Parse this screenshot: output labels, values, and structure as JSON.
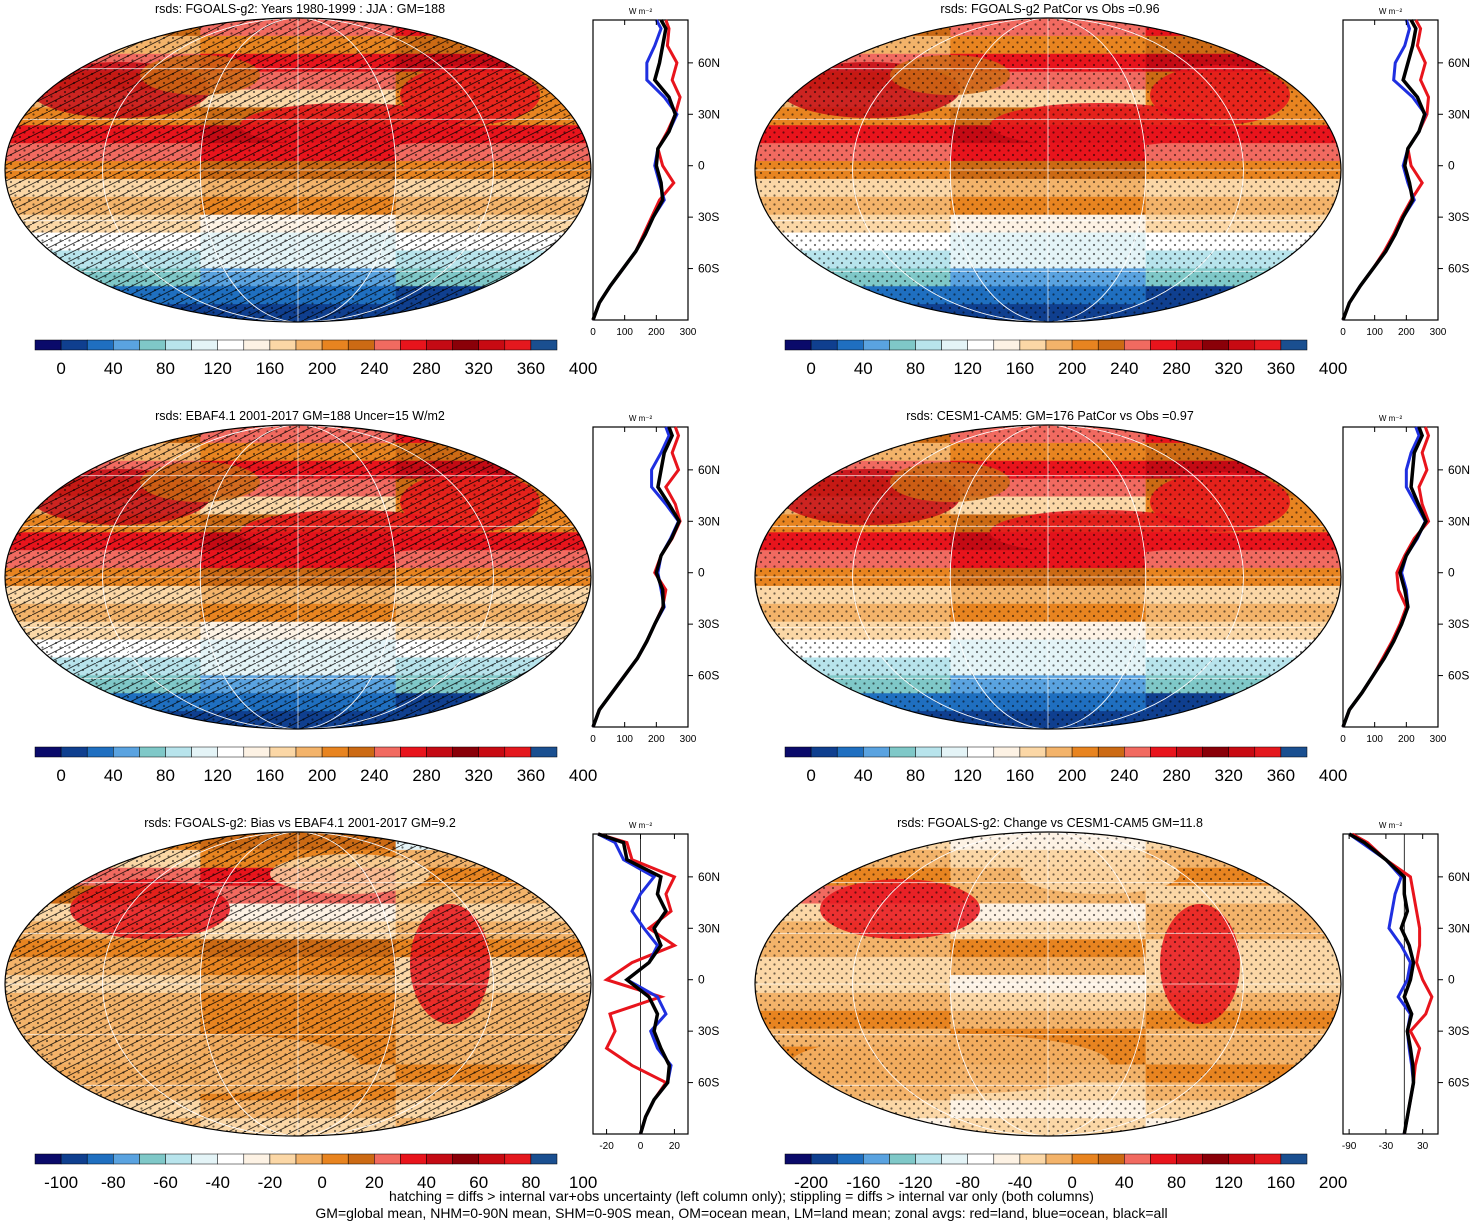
{
  "palette": [
    "#0a0a6a",
    "#0f3f8f",
    "#1f6fc0",
    "#5aa3e0",
    "#7fc8c8",
    "#b8e4ec",
    "#e4f4f7",
    "#ffffff",
    "#fdf2e4",
    "#fbd7a6",
    "#f3b36a",
    "#e88420",
    "#cc6a14",
    "#f16a60",
    "#e8141c",
    "#c40a14",
    "#8a0008",
    "#c80a12",
    "#e4181e",
    "#1a4f90"
  ],
  "zonal_colors": {
    "land": "#e8141c",
    "ocean": "#1f2fe0",
    "all": "#000000"
  },
  "field_style": [
    {
      "type": "absolute"
    },
    {
      "type": "absolute"
    },
    {
      "type": "absolute"
    },
    {
      "type": "absolute"
    },
    {
      "type": "diff"
    },
    {
      "type": "diff"
    }
  ],
  "chart_data": [
    {
      "type": "heatmap",
      "title": "rsds: FGOALS-g2: Years 1980-1999 : JJA : GM=188",
      "colorbar_ticks": [
        "0",
        "40",
        "80",
        "120",
        "160",
        "200",
        "240",
        "280",
        "320",
        "360",
        "400"
      ],
      "zonal": {
        "unit_label": "W m⁻²",
        "xlim": [
          0,
          300
        ],
        "xticks": [
          "0",
          "100",
          "200",
          "300"
        ],
        "lat_labels": [
          "60N",
          "30N",
          "0",
          "30S",
          "60S"
        ],
        "lat": [
          -90,
          -80,
          -70,
          -60,
          -50,
          -40,
          -30,
          -20,
          -10,
          0,
          10,
          20,
          30,
          40,
          50,
          60,
          70,
          80,
          85
        ],
        "land": [
          0,
          20,
          55,
          95,
          135,
          160,
          185,
          210,
          255,
          220,
          205,
          235,
          260,
          275,
          250,
          265,
          235,
          240,
          230
        ],
        "ocean": [
          0,
          20,
          55,
          95,
          135,
          165,
          190,
          225,
          210,
          195,
          205,
          240,
          265,
          225,
          170,
          170,
          195,
          215,
          200
        ],
        "all": [
          0,
          20,
          55,
          95,
          135,
          165,
          190,
          220,
          215,
          200,
          205,
          240,
          260,
          240,
          195,
          210,
          220,
          230,
          215
        ]
      }
    },
    {
      "type": "heatmap",
      "title": "rsds: FGOALS-g2 PatCor vs Obs =0.96",
      "colorbar_ticks": [
        "0",
        "40",
        "80",
        "120",
        "160",
        "200",
        "240",
        "280",
        "320",
        "360",
        "400"
      ],
      "zonal": {
        "unit_label": "W m⁻²",
        "xlim": [
          0,
          300
        ],
        "xticks": [
          "0",
          "100",
          "200",
          "300"
        ],
        "lat_labels": [
          "60N",
          "30N",
          "0",
          "30S",
          "60S"
        ],
        "lat": [
          -90,
          -80,
          -70,
          -60,
          -50,
          -40,
          -30,
          -20,
          -10,
          0,
          10,
          20,
          30,
          40,
          50,
          60,
          70,
          80,
          85
        ],
        "land": [
          0,
          20,
          55,
          95,
          130,
          160,
          185,
          215,
          250,
          215,
          205,
          240,
          265,
          270,
          245,
          260,
          235,
          245,
          230
        ],
        "ocean": [
          0,
          20,
          55,
          95,
          135,
          165,
          190,
          225,
          205,
          190,
          205,
          240,
          260,
          220,
          160,
          165,
          195,
          210,
          200
        ],
        "all": [
          0,
          20,
          55,
          95,
          135,
          165,
          190,
          220,
          210,
          195,
          205,
          240,
          258,
          235,
          190,
          205,
          220,
          230,
          215
        ]
      }
    },
    {
      "type": "heatmap",
      "title": "rsds: EBAF4.1 2001-2017 GM=188 Uncer=15 W/m2",
      "colorbar_ticks": [
        "0",
        "40",
        "80",
        "120",
        "160",
        "200",
        "240",
        "280",
        "320",
        "360",
        "400"
      ],
      "zonal": {
        "unit_label": "W m⁻²",
        "xlim": [
          0,
          300
        ],
        "xticks": [
          "0",
          "100",
          "200",
          "300"
        ],
        "lat_labels": [
          "60N",
          "30N",
          "0",
          "30S",
          "60S"
        ],
        "lat": [
          -90,
          -80,
          -70,
          -60,
          -50,
          -40,
          -30,
          -20,
          -10,
          0,
          10,
          20,
          30,
          40,
          50,
          60,
          70,
          80,
          85
        ],
        "land": [
          0,
          20,
          60,
          100,
          140,
          170,
          195,
          220,
          230,
          195,
          215,
          250,
          275,
          260,
          230,
          270,
          250,
          270,
          260
        ],
        "ocean": [
          0,
          20,
          60,
          100,
          140,
          170,
          195,
          225,
          215,
          205,
          215,
          245,
          270,
          230,
          185,
          185,
          215,
          240,
          230
        ],
        "all": [
          0,
          20,
          60,
          100,
          140,
          170,
          195,
          222,
          220,
          200,
          215,
          248,
          272,
          240,
          205,
          215,
          225,
          250,
          240
        ]
      }
    },
    {
      "type": "heatmap",
      "title": "rsds: CESM1-CAM5: GM=176 PatCor vs Obs =0.97",
      "colorbar_ticks": [
        "0",
        "40",
        "80",
        "120",
        "160",
        "200",
        "240",
        "280",
        "320",
        "360",
        "400"
      ],
      "zonal": {
        "unit_label": "W m⁻²",
        "xlim": [
          0,
          300
        ],
        "xticks": [
          "0",
          "100",
          "200",
          "300"
        ],
        "lat_labels": [
          "60N",
          "30N",
          "0",
          "30S",
          "60S"
        ],
        "lat": [
          -90,
          -80,
          -70,
          -60,
          -50,
          -40,
          -30,
          -20,
          -10,
          0,
          10,
          20,
          30,
          40,
          50,
          60,
          70,
          80,
          85
        ],
        "land": [
          0,
          20,
          60,
          95,
          125,
          155,
          180,
          200,
          175,
          170,
          195,
          225,
          270,
          250,
          240,
          265,
          250,
          270,
          260
        ],
        "ocean": [
          0,
          20,
          60,
          95,
          130,
          160,
          185,
          205,
          200,
          185,
          200,
          235,
          260,
          230,
          200,
          200,
          215,
          240,
          230
        ],
        "all": [
          0,
          20,
          60,
          95,
          130,
          160,
          185,
          205,
          195,
          180,
          200,
          232,
          262,
          238,
          215,
          220,
          225,
          250,
          240
        ]
      }
    },
    {
      "type": "heatmap",
      "title": "rsds: FGOALS-g2: Bias vs EBAF4.1 2001-2017 GM=9.2",
      "colorbar_ticks": [
        "-100",
        "-80",
        "-60",
        "-40",
        "-20",
        "0",
        "20",
        "40",
        "60",
        "80",
        "100"
      ],
      "zonal": {
        "unit_label": "W m⁻²",
        "xlim": [
          -28,
          28
        ],
        "xticks": [
          "-20",
          "0",
          "20"
        ],
        "lat_labels": [
          "60N",
          "30N",
          "0",
          "30S",
          "60S"
        ],
        "lat": [
          -90,
          -80,
          -70,
          -60,
          -50,
          -40,
          -30,
          -20,
          -10,
          0,
          10,
          20,
          30,
          40,
          50,
          60,
          70,
          80,
          85
        ],
        "land": [
          0,
          3,
          8,
          15,
          -5,
          -20,
          -15,
          -18,
          12,
          -20,
          -5,
          20,
          5,
          18,
          15,
          20,
          -5,
          -8,
          -25
        ],
        "ocean": [
          0,
          3,
          8,
          16,
          18,
          10,
          6,
          15,
          10,
          -8,
          5,
          10,
          2,
          -5,
          0,
          8,
          -10,
          -15,
          -25
        ],
        "all": [
          0,
          3,
          8,
          16,
          17,
          12,
          8,
          10,
          5,
          -8,
          5,
          12,
          8,
          15,
          10,
          12,
          -8,
          -10,
          -25
        ]
      }
    },
    {
      "type": "heatmap",
      "title": "rsds: FGOALS-g2: Change vs CESM1-CAM5 GM=11.8",
      "colorbar_ticks": [
        "-200",
        "-160",
        "-120",
        "-80",
        "-40",
        "0",
        "40",
        "80",
        "120",
        "160",
        "200"
      ],
      "zonal": {
        "unit_label": "W m⁻²",
        "xlim": [
          -100,
          55
        ],
        "xticks": [
          "-90",
          "-30",
          "30"
        ],
        "lat_labels": [
          "60N",
          "30N",
          "0",
          "30S",
          "60S"
        ],
        "lat": [
          -90,
          -80,
          -70,
          -60,
          -50,
          -40,
          -30,
          -20,
          -10,
          0,
          10,
          20,
          30,
          40,
          50,
          60,
          70,
          80,
          85
        ],
        "land": [
          0,
          5,
          10,
          15,
          18,
          25,
          10,
          35,
          45,
          30,
          20,
          25,
          25,
          20,
          15,
          10,
          -30,
          -60,
          -85
        ],
        "ocean": [
          0,
          5,
          10,
          15,
          12,
          8,
          5,
          10,
          -10,
          5,
          10,
          -5,
          -25,
          -20,
          -15,
          -5,
          -30,
          -70,
          -90
        ],
        "all": [
          0,
          5,
          10,
          15,
          14,
          10,
          5,
          12,
          0,
          10,
          15,
          8,
          -5,
          5,
          0,
          0,
          -30,
          -65,
          -90
        ]
      }
    }
  ],
  "footer": {
    "line1": "hatching = diffs > internal var+obs uncertainty (left column only); stippling = diffs > internal var only (both columns)",
    "line2": "GM=global mean, NHM=0-90N mean, SHM=0-90S mean, OM=ocean mean, LM=land mean; zonal avgs: red=land, blue=ocean, black=all"
  }
}
